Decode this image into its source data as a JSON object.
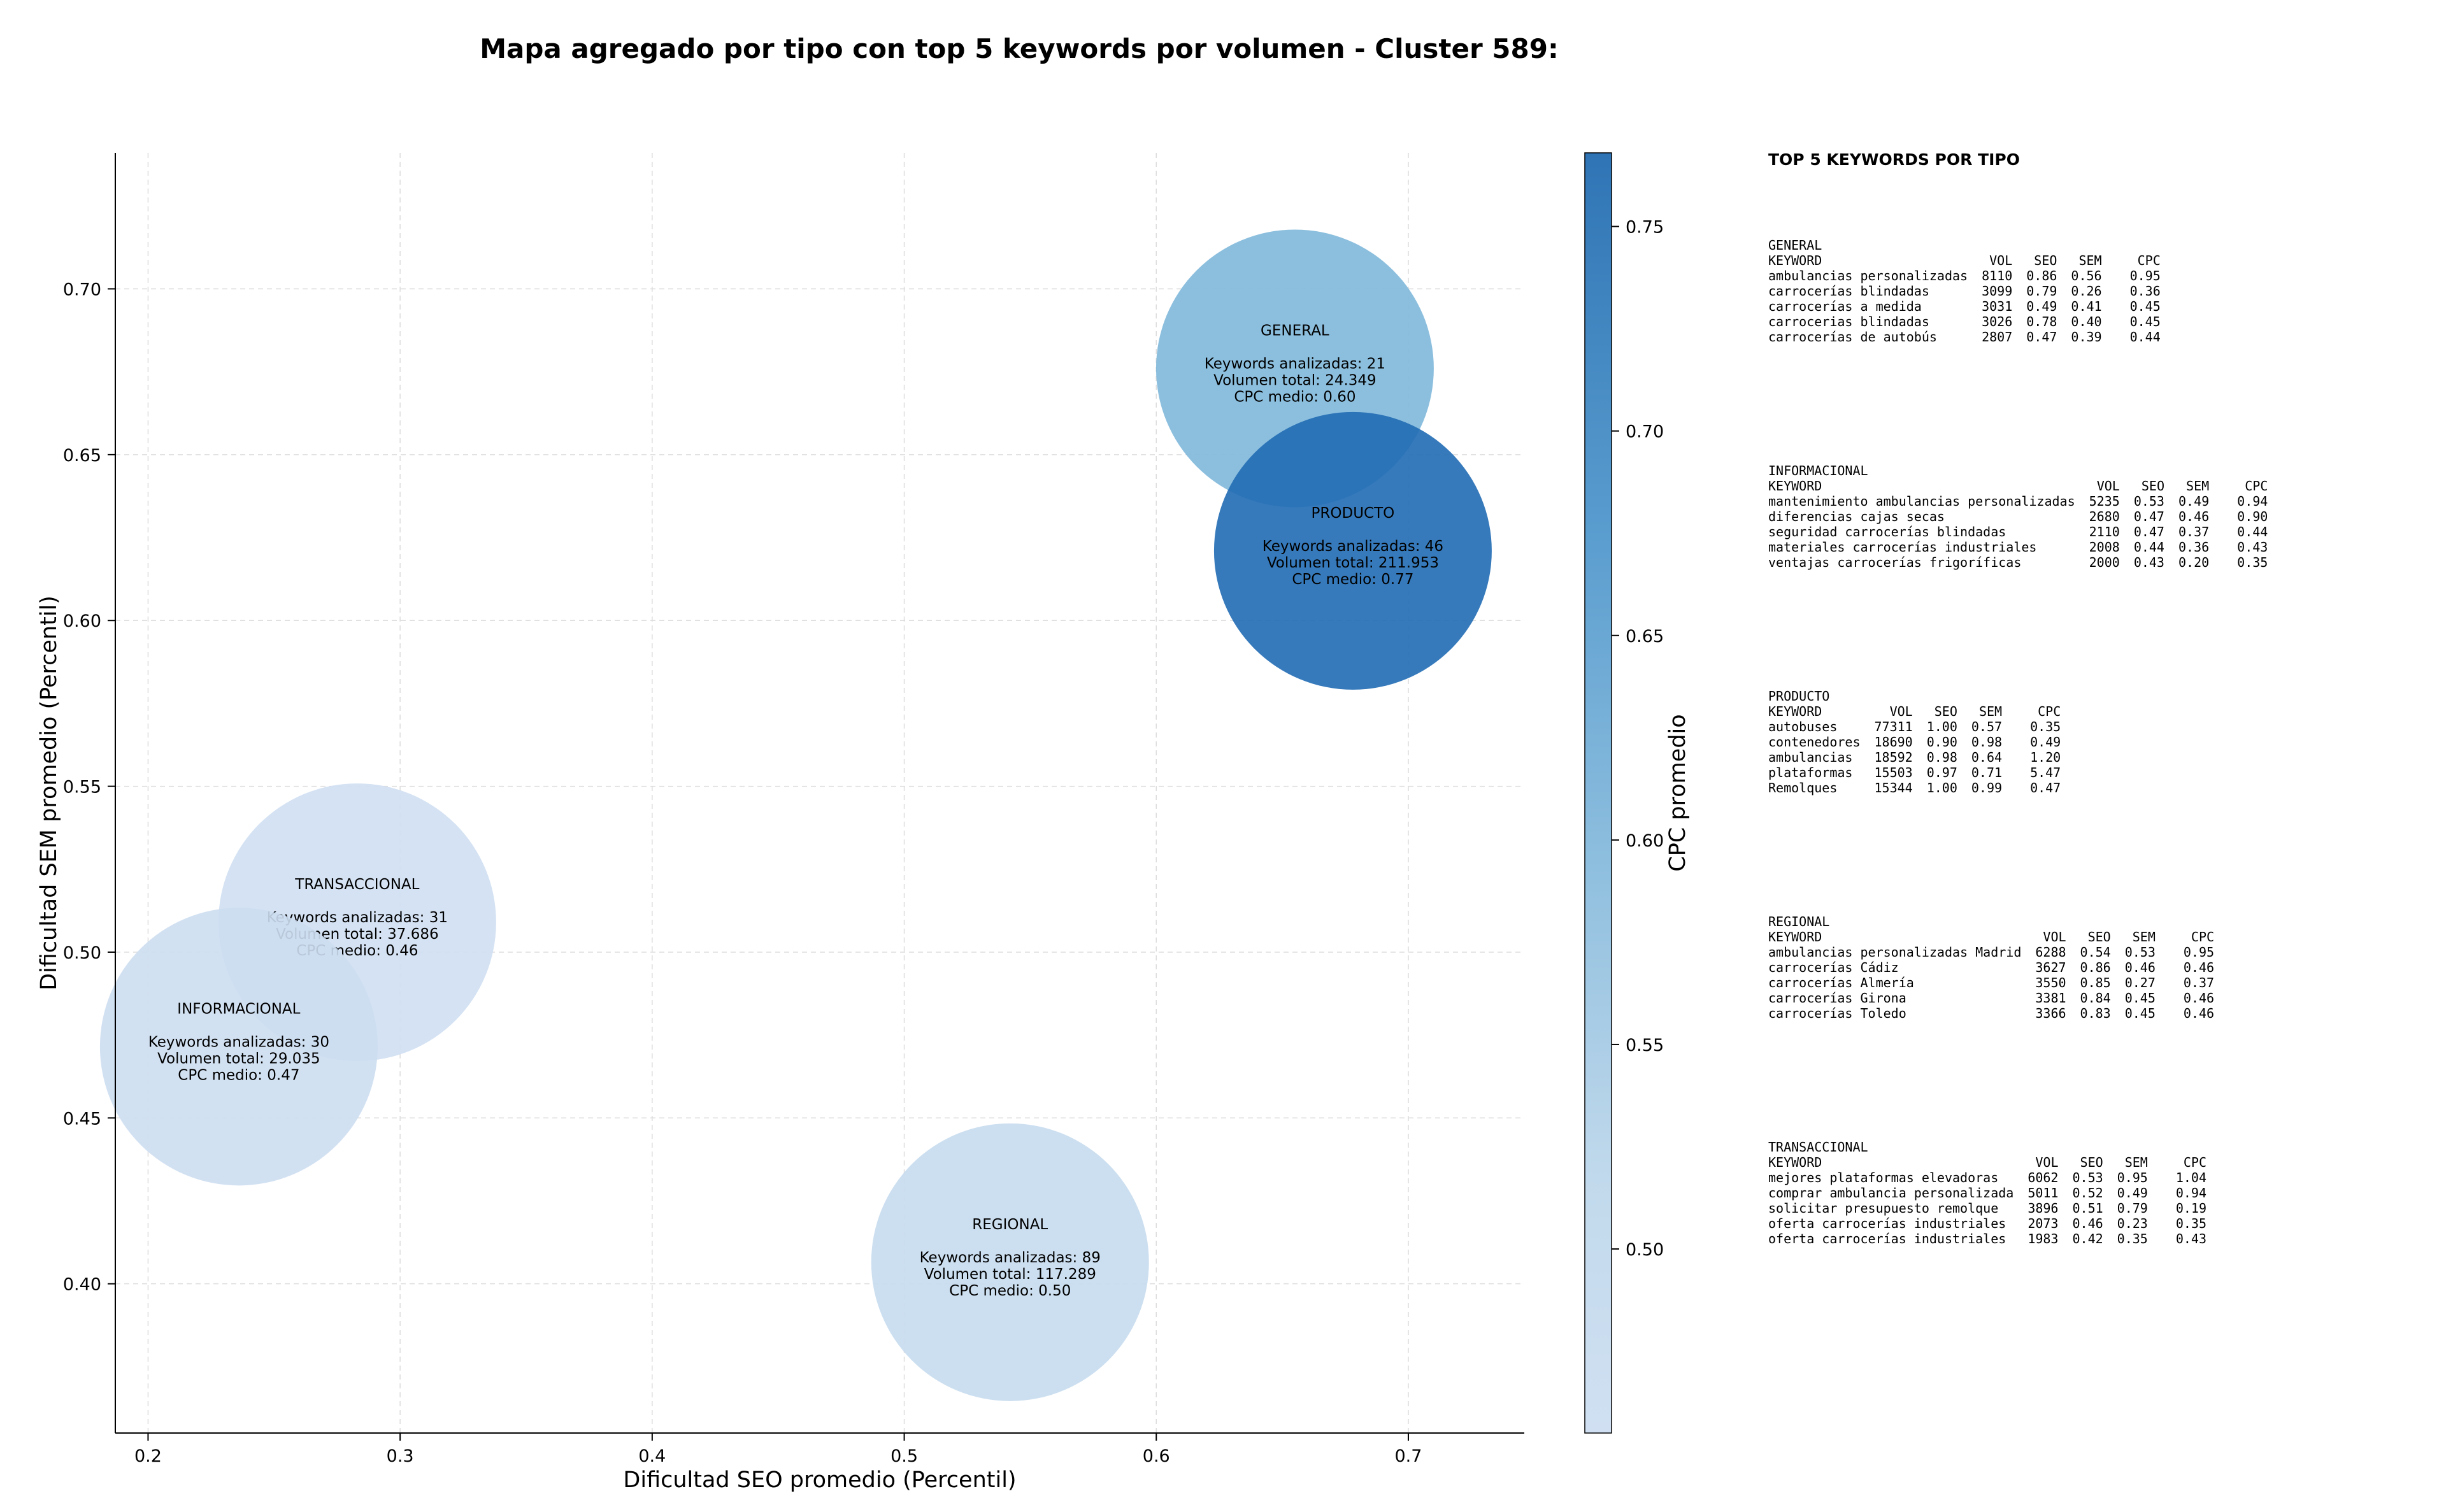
{
  "chart_data": {
    "type": "scatter",
    "title": "Mapa agregado por tipo con top 5 keywords por volumen - Cluster 589:",
    "xlabel": "Dificultad SEO promedio (Percentil)",
    "ylabel": "Dificultad SEM promedio (Percentil)",
    "xlim": [
      0.187,
      0.746
    ],
    "ylim": [
      0.355,
      0.741
    ],
    "xticks": [
      "0.2",
      "0.3",
      "0.4",
      "0.5",
      "0.6",
      "0.7"
    ],
    "yticks": [
      "0.40",
      "0.45",
      "0.50",
      "0.55",
      "0.60",
      "0.65",
      "0.70"
    ],
    "grid": true,
    "colorbar": {
      "label": "CPC promedio",
      "range": [
        0.455,
        0.768
      ],
      "ticks": [
        "0.50",
        "0.55",
        "0.60",
        "0.65",
        "0.70",
        "0.75"
      ]
    },
    "points": [
      {
        "name": "GENERAL",
        "x": 0.655,
        "y": 0.676,
        "keywords_label": "Keywords analizadas: 21",
        "volume_label": "Volumen total: 24.349",
        "cpc_label": "CPC medio: 0.60",
        "cpc": 0.6
      },
      {
        "name": "PRODUCTO",
        "x": 0.678,
        "y": 0.621,
        "keywords_label": "Keywords analizadas: 46",
        "volume_label": "Volumen total: 211.953",
        "cpc_label": "CPC medio: 0.77",
        "cpc": 0.77
      },
      {
        "name": "TRANSACCIONAL",
        "x": 0.283,
        "y": 0.509,
        "keywords_label": "Keywords analizadas: 31",
        "volume_label": "Volumen total: 37.686",
        "cpc_label": "CPC medio: 0.46",
        "cpc": 0.46
      },
      {
        "name": "INFORMACIONAL",
        "x": 0.236,
        "y": 0.4715,
        "keywords_label": "Keywords analizadas: 30",
        "volume_label": "Volumen total: 29.035",
        "cpc_label": "CPC medio: 0.47",
        "cpc": 0.47
      },
      {
        "name": "REGIONAL",
        "x": 0.542,
        "y": 0.4065,
        "keywords_label": "Keywords analizadas: 89",
        "volume_label": "Volumen total: 117.289",
        "cpc_label": "CPC medio: 0.50",
        "cpc": 0.5
      }
    ]
  },
  "side_panel": {
    "title": "TOP 5 KEYWORDS POR TIPO",
    "columns": [
      "KEYWORD",
      "VOL",
      "SEO",
      "SEM",
      "CPC"
    ],
    "groups": [
      {
        "type": "GENERAL",
        "rows": [
          [
            "ambulancias personalizadas",
            "8110",
            "0.86",
            "0.56",
            "0.95"
          ],
          [
            "carrocerías blindadas",
            "3099",
            "0.79",
            "0.26",
            "0.36"
          ],
          [
            "carrocerías a medida",
            "3031",
            "0.49",
            "0.41",
            "0.45"
          ],
          [
            "carrocerias blindadas",
            "3026",
            "0.78",
            "0.40",
            "0.45"
          ],
          [
            "carrocerías de autobús",
            "2807",
            "0.47",
            "0.39",
            "0.44"
          ]
        ]
      },
      {
        "type": "INFORMACIONAL",
        "rows": [
          [
            "mantenimiento ambulancias personalizadas",
            "5235",
            "0.53",
            "0.49",
            "0.94"
          ],
          [
            "diferencias cajas secas",
            "2680",
            "0.47",
            "0.46",
            "0.90"
          ],
          [
            "seguridad carrocerías blindadas",
            "2110",
            "0.47",
            "0.37",
            "0.44"
          ],
          [
            "materiales carrocerías industriales",
            "2008",
            "0.44",
            "0.36",
            "0.43"
          ],
          [
            "ventajas carrocerías frigoríficas",
            "2000",
            "0.43",
            "0.20",
            "0.35"
          ]
        ]
      },
      {
        "type": "PRODUCTO",
        "rows": [
          [
            "autobuses",
            "77311",
            "1.00",
            "0.57",
            "0.35"
          ],
          [
            "contenedores",
            "18690",
            "0.90",
            "0.98",
            "0.49"
          ],
          [
            "ambulancias",
            "18592",
            "0.98",
            "0.64",
            "1.20"
          ],
          [
            "plataformas",
            "15503",
            "0.97",
            "0.71",
            "5.47"
          ],
          [
            "Remolques",
            "15344",
            "1.00",
            "0.99",
            "0.47"
          ]
        ]
      },
      {
        "type": "REGIONAL",
        "rows": [
          [
            "ambulancias personalizadas Madrid",
            "6288",
            "0.54",
            "0.53",
            "0.95"
          ],
          [
            "carrocerías Cádiz",
            "3627",
            "0.86",
            "0.46",
            "0.46"
          ],
          [
            "carrocerías Almería",
            "3550",
            "0.85",
            "0.27",
            "0.37"
          ],
          [
            "carrocerías Girona",
            "3381",
            "0.84",
            "0.45",
            "0.46"
          ],
          [
            "carrocerías Toledo",
            "3366",
            "0.83",
            "0.45",
            "0.46"
          ]
        ]
      },
      {
        "type": "TRANSACCIONAL",
        "rows": [
          [
            "mejores plataformas elevadoras",
            "6062",
            "0.53",
            "0.95",
            "1.04"
          ],
          [
            "comprar ambulancia personalizada",
            "5011",
            "0.52",
            "0.49",
            "0.94"
          ],
          [
            "solicitar presupuesto remolque",
            "3896",
            "0.51",
            "0.79",
            "0.19"
          ],
          [
            "oferta carrocerías industriales",
            "2073",
            "0.46",
            "0.23",
            "0.35"
          ],
          [
            "oferta carrocerías industriales",
            "1983",
            "0.42",
            "0.35",
            "0.43"
          ]
        ]
      }
    ]
  }
}
